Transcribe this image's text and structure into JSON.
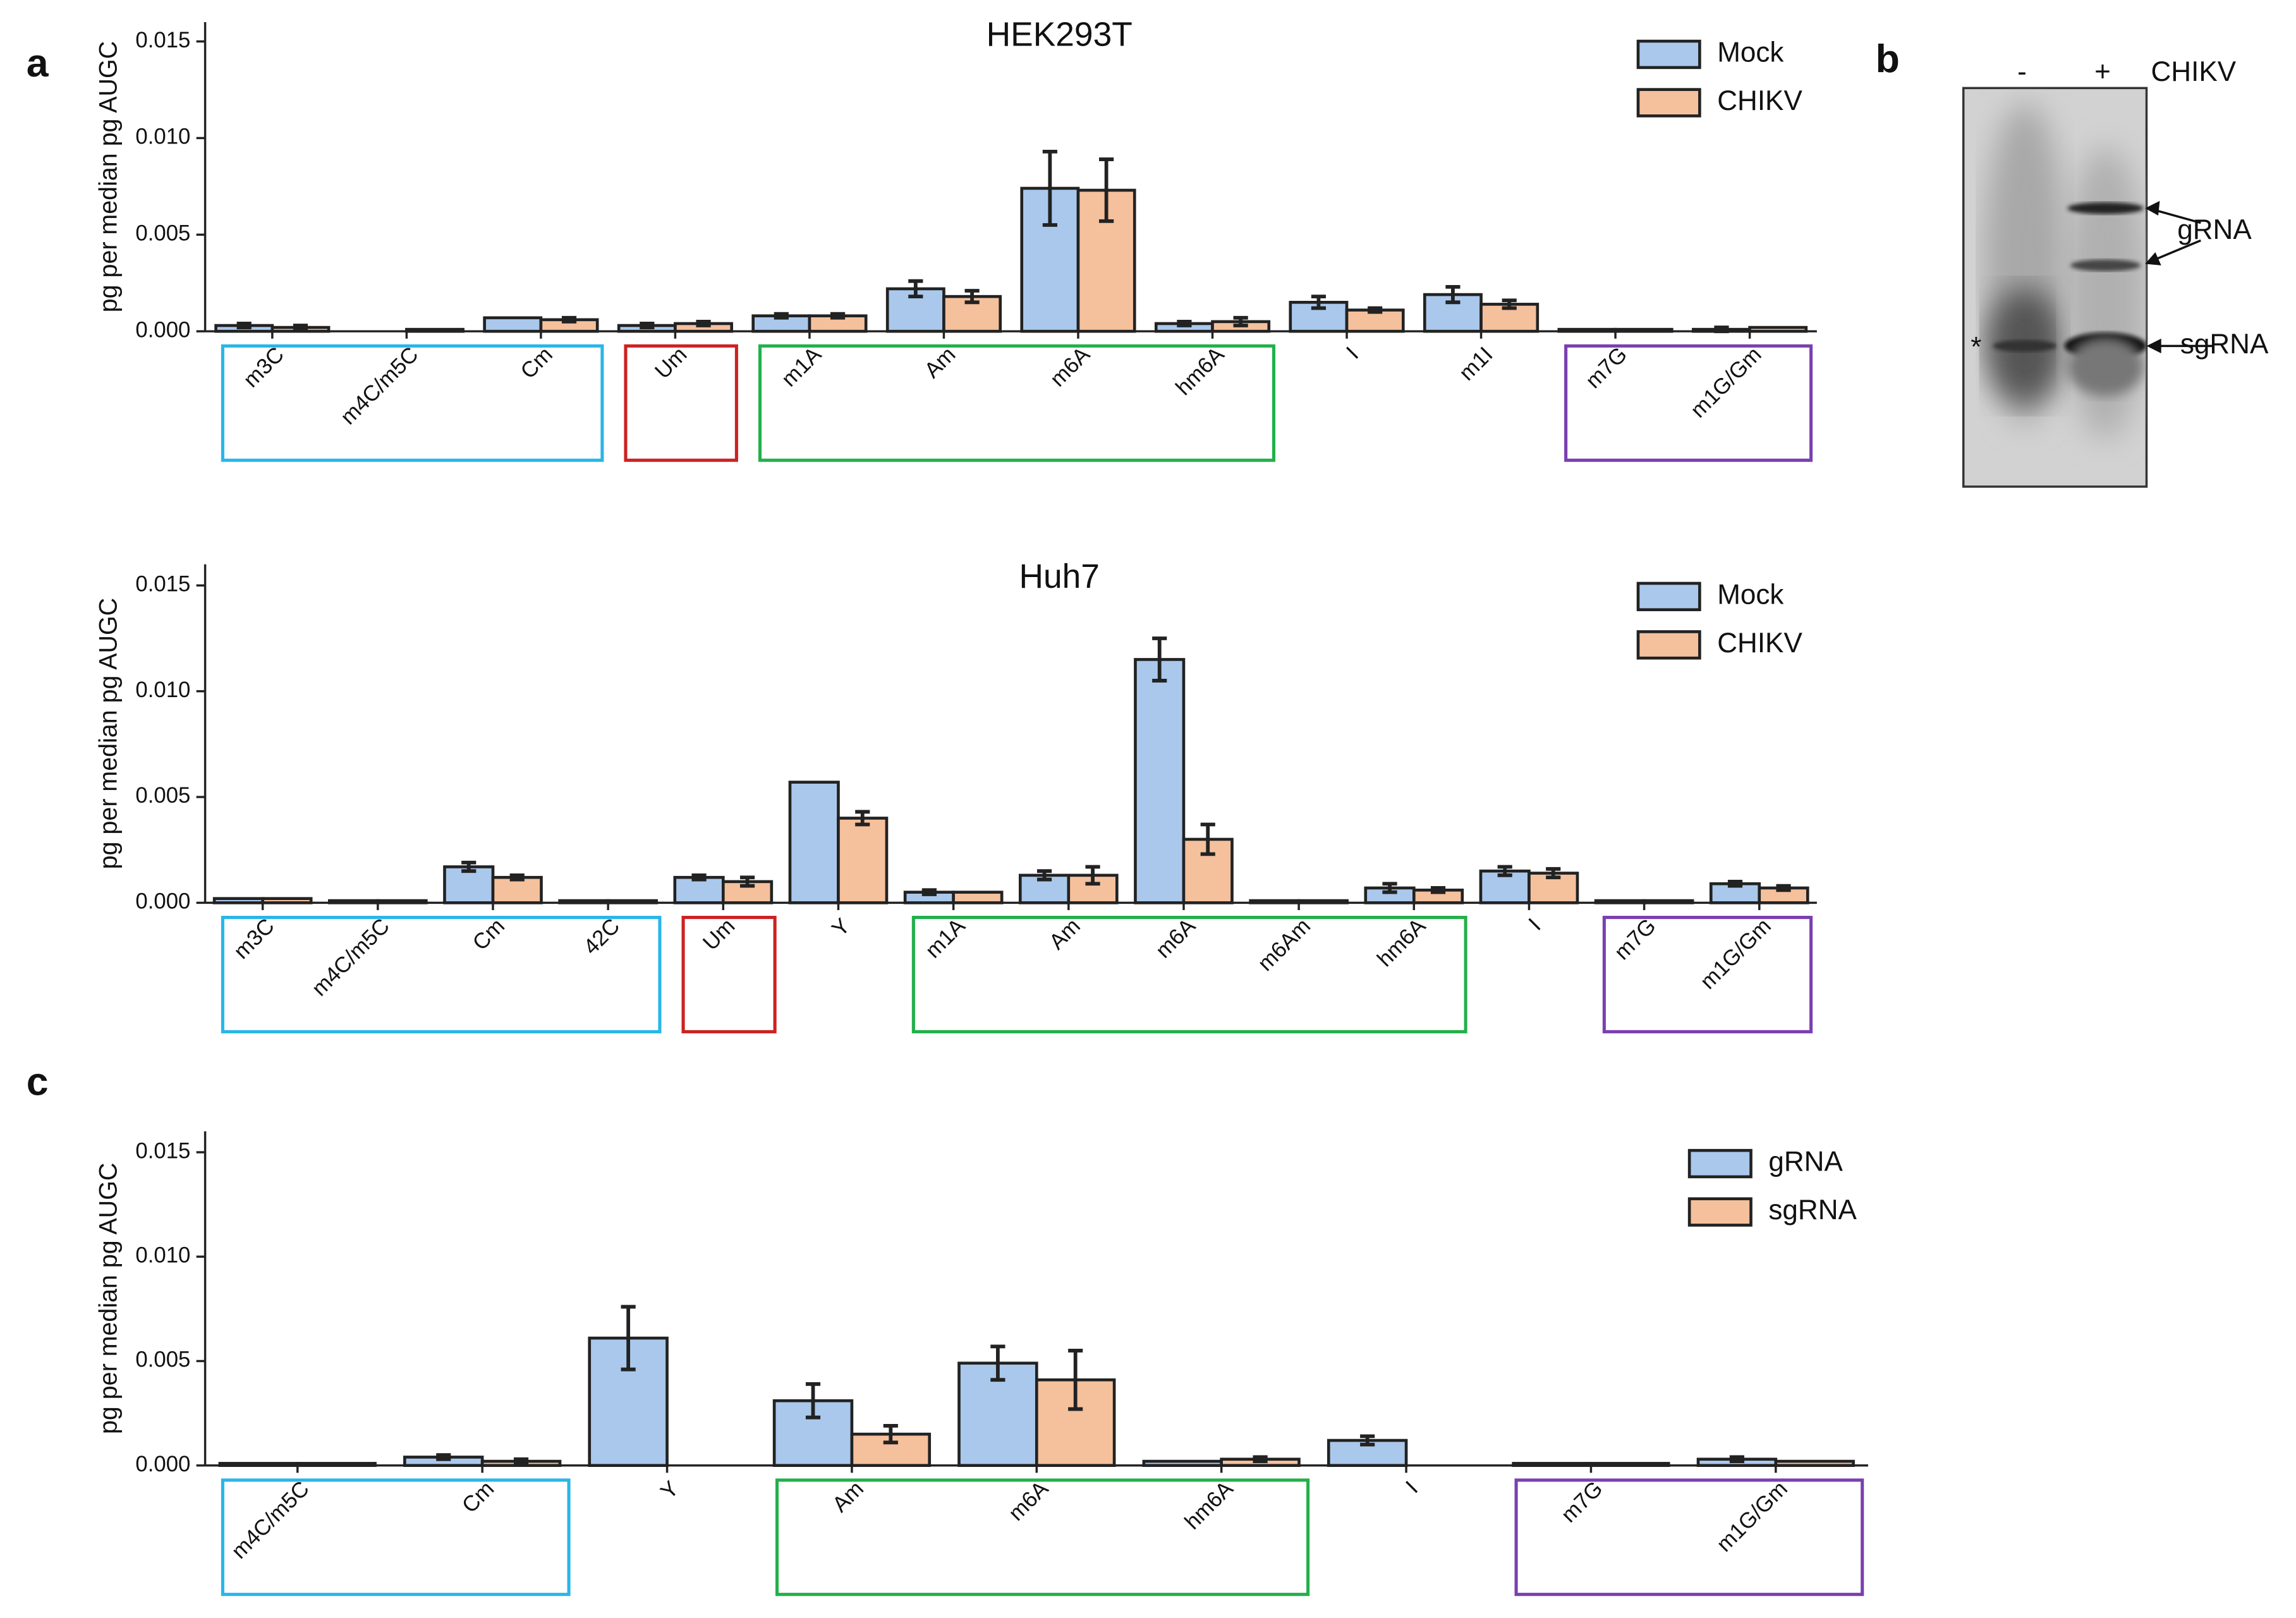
{
  "panel_labels": [
    "a",
    "b",
    "c"
  ],
  "gel": {
    "lanes": [
      "-",
      "+"
    ],
    "condition": "CHIKV",
    "bands": [
      "gRNA",
      "sgRNA"
    ],
    "marker": "*"
  },
  "chart_data": [
    {
      "type": "bar",
      "title": "HEK293T",
      "y_label": "pg per median pg AUGC",
      "categories": [
        "m3C",
        "m4C/m5C",
        "Cm",
        "Um",
        "m1A",
        "Am",
        "m6A",
        "hm6A",
        "I",
        "m1I",
        "m7G",
        "m1G/Gm"
      ],
      "series": [
        {
          "name": "Mock",
          "color": "#a9c8ec",
          "values": [
            0.0003,
            0,
            0.0007,
            0.0003,
            0.0008,
            0.0022,
            0.0074,
            0.0004,
            0.0015,
            0.0019,
            0.0001,
            0.0001
          ],
          "errors": [
            0.0001,
            0,
            0,
            0.0001,
            0.0001,
            0.0004,
            0.0019,
            0.0001,
            0.0003,
            0.0004,
            0,
            0.0001
          ]
        },
        {
          "name": "CHIKV",
          "color": "#f5c09c",
          "values": [
            0.0002,
            0.0001,
            0.0006,
            0.0004,
            0.0008,
            0.0018,
            0.0073,
            0.0005,
            0.0011,
            0.0014,
            0.0001,
            0.0002
          ],
          "errors": [
            0.0001,
            0,
            0.0001,
            0.0001,
            0.0001,
            0.0003,
            0.0016,
            0.0002,
            0.0001,
            0.0002,
            0,
            0
          ]
        }
      ],
      "ylim": [
        0,
        0.016
      ],
      "yticks": [
        {
          "value": 0,
          "label": "0.000"
        },
        {
          "value": 0.005,
          "label": "0.005"
        },
        {
          "value": 0.01,
          "label": "0.010"
        },
        {
          "value": 0.015,
          "label": "0.015"
        }
      ],
      "legend": "top-right",
      "groups": [
        {
          "start": 0,
          "end": 2,
          "color": "#29b6e8"
        },
        {
          "start": 3,
          "end": 3,
          "color": "#cc2222"
        },
        {
          "start": 4,
          "end": 7,
          "color": "#22b04a"
        },
        {
          "start": 10,
          "end": 11,
          "color": "#7a3fb0"
        }
      ]
    },
    {
      "type": "bar",
      "title": "Huh7",
      "y_label": "pg per median pg AUGC",
      "categories": [
        "m3C",
        "m4C/m5C",
        "Cm",
        "42C",
        "Um",
        "Y",
        "m1A",
        "Am",
        "m6A",
        "m6Am",
        "hm6A",
        "I",
        "m7G",
        "m1G/Gm"
      ],
      "series": [
        {
          "name": "Mock",
          "color": "#a9c8ec",
          "values": [
            0.0002,
            0.0001,
            0.0017,
            0.0001,
            0.0012,
            0.0057,
            0.0005,
            0.0013,
            0.0115,
            0.0001,
            0.0007,
            0.0015,
            0.0001,
            0.0009
          ],
          "errors": [
            0,
            0,
            0.0002,
            0,
            0.0001,
            0,
            0.0001,
            0.0002,
            0.001,
            0,
            0.0002,
            0.0002,
            0,
            0.0001
          ]
        },
        {
          "name": "CHIKV",
          "color": "#f5c09c",
          "values": [
            0.0002,
            0.0001,
            0.0012,
            0.0001,
            0.001,
            0.004,
            0.0005,
            0.0013,
            0.003,
            0.0001,
            0.0006,
            0.0014,
            0.0001,
            0.0007
          ],
          "errors": [
            0,
            0,
            0.0001,
            0,
            0.0002,
            0.0003,
            0,
            0.0004,
            0.0007,
            0,
            0.0001,
            0.0002,
            0,
            0.0001
          ]
        }
      ],
      "ylim": [
        0,
        0.016
      ],
      "yticks": [
        {
          "value": 0,
          "label": "0.000"
        },
        {
          "value": 0.005,
          "label": "0.005"
        },
        {
          "value": 0.01,
          "label": "0.010"
        },
        {
          "value": 0.015,
          "label": "0.015"
        }
      ],
      "legend": "top-right",
      "groups": [
        {
          "start": 0,
          "end": 3,
          "color": "#29b6e8"
        },
        {
          "start": 4,
          "end": 4,
          "color": "#cc2222"
        },
        {
          "start": 6,
          "end": 10,
          "color": "#22b04a"
        },
        {
          "start": 12,
          "end": 13,
          "color": "#7a3fb0"
        }
      ]
    },
    {
      "type": "bar",
      "y_label": "pg per median pg AUGC",
      "categories": [
        "m4C/m5C",
        "Cm",
        "Y",
        "Am",
        "m6A",
        "hm6A",
        "I",
        "m7G",
        "m1G/Gm"
      ],
      "series": [
        {
          "name": "gRNA",
          "color": "#a9c8ec",
          "values": [
            0.0001,
            0.0004,
            0.0061,
            0.0031,
            0.0049,
            0.0002,
            0.0012,
            0.0001,
            0.0003
          ],
          "errors": [
            0,
            0.0001,
            0.0015,
            0.0008,
            0.0008,
            0,
            0.0002,
            0,
            0.0001
          ]
        },
        {
          "name": "sgRNA",
          "color": "#f5c09c",
          "values": [
            0.0001,
            0.0002,
            null,
            0.0015,
            0.0041,
            0.0003,
            null,
            0.0001,
            0.0002
          ],
          "errors": [
            0,
            0.0001,
            null,
            0.0004,
            0.0014,
            0.0001,
            null,
            0,
            0
          ]
        }
      ],
      "ylim": [
        0,
        0.016
      ],
      "yticks": [
        {
          "value": 0,
          "label": "0.000"
        },
        {
          "value": 0.005,
          "label": "0.005"
        },
        {
          "value": 0.01,
          "label": "0.010"
        },
        {
          "value": 0.015,
          "label": "0.015"
        }
      ],
      "legend": "top-right",
      "groups": [
        {
          "start": 0,
          "end": 1,
          "color": "#29b6e8"
        },
        {
          "start": 3,
          "end": 5,
          "color": "#22b04a"
        },
        {
          "start": 7,
          "end": 8,
          "color": "#7a3fb0"
        }
      ]
    }
  ]
}
